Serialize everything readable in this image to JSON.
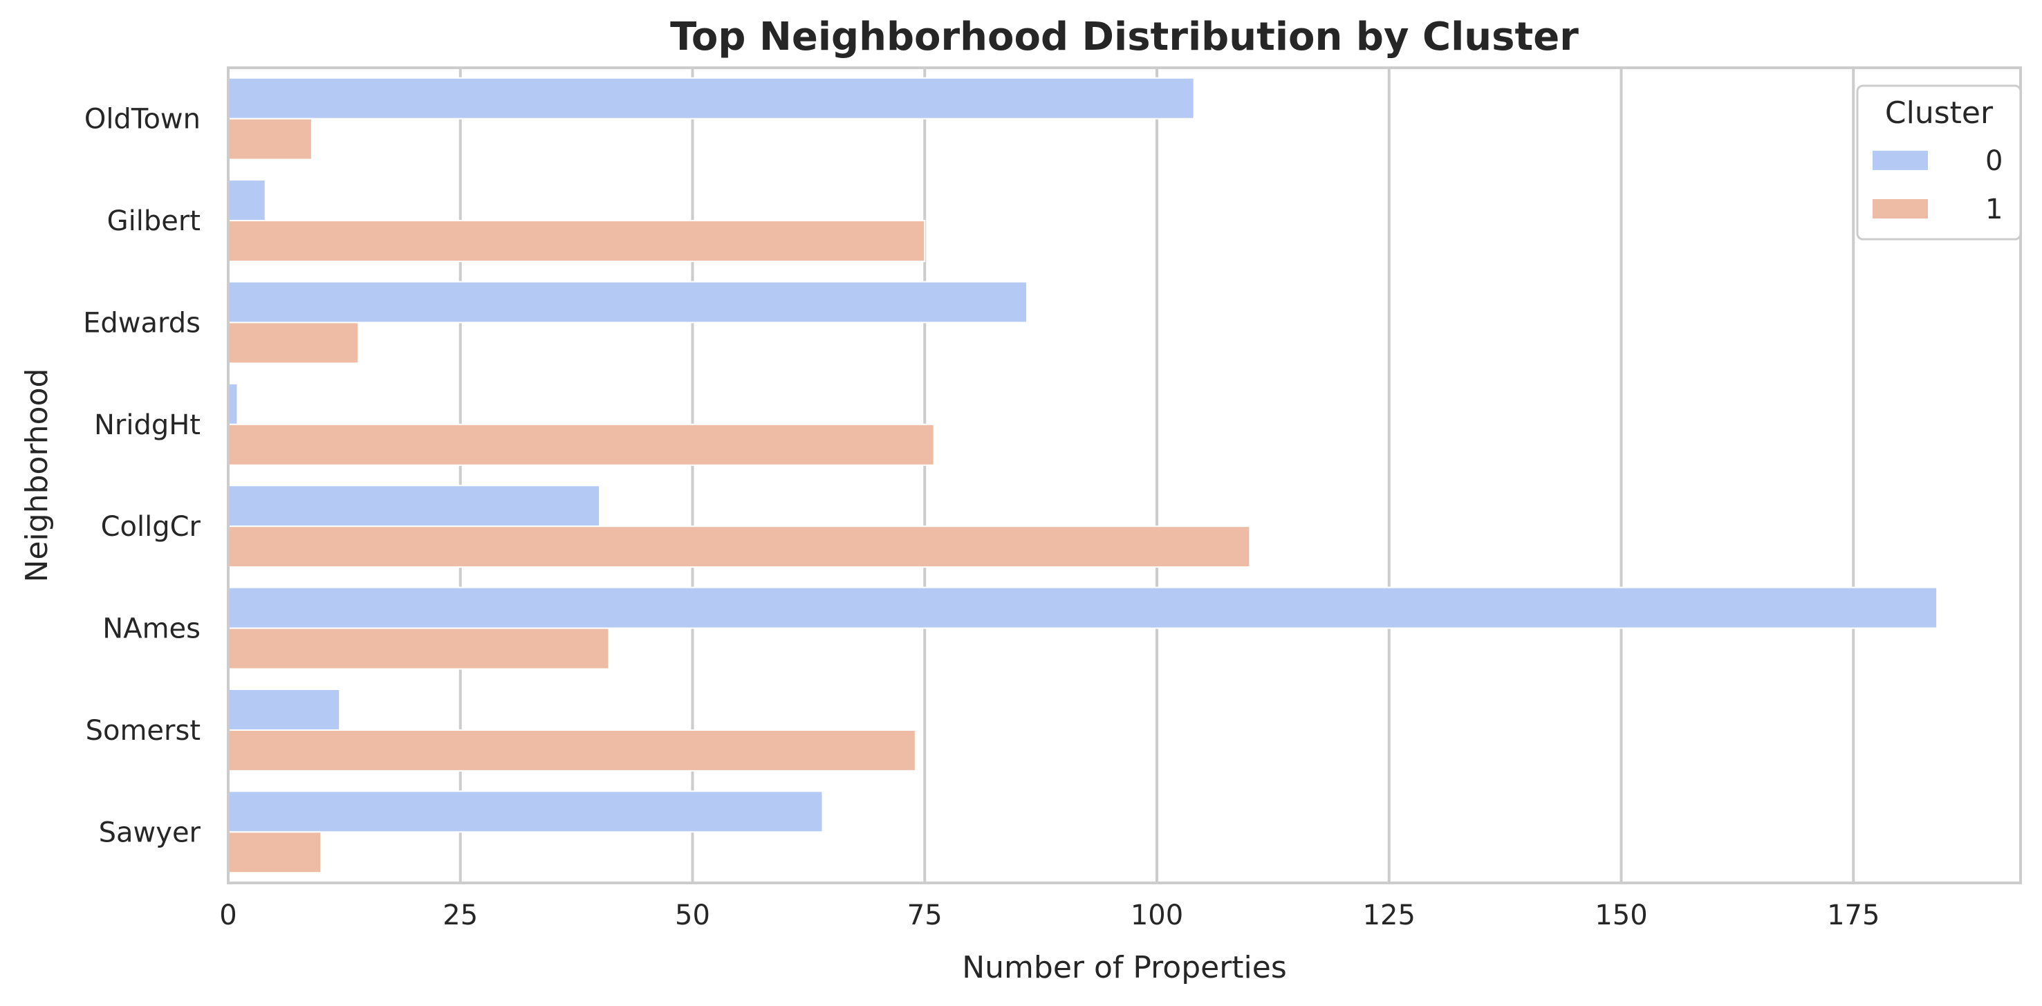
{
  "chart_data": {
    "type": "bar",
    "orientation": "horizontal",
    "title": "Top Neighborhood Distribution by Cluster",
    "xlabel": "Number of Properties",
    "ylabel": "Neighborhood",
    "categories": [
      "OldTown",
      "Gilbert",
      "Edwards",
      "NridgHt",
      "CollgCr",
      "NAmes",
      "Somerst",
      "Sawyer"
    ],
    "series": [
      {
        "name": "0",
        "color": "#b4c9f4",
        "values": [
          104,
          4,
          86,
          1,
          40,
          184,
          12,
          64
        ]
      },
      {
        "name": "1",
        "color": "#eebca4",
        "values": [
          9,
          75,
          14,
          76,
          110,
          41,
          74,
          10
        ]
      }
    ],
    "xlim": [
      0,
      193
    ],
    "xticks": [
      0,
      25,
      50,
      75,
      100,
      125,
      150,
      175
    ],
    "grid": true,
    "legend": {
      "title": "Cluster",
      "placement": "top-right"
    }
  }
}
